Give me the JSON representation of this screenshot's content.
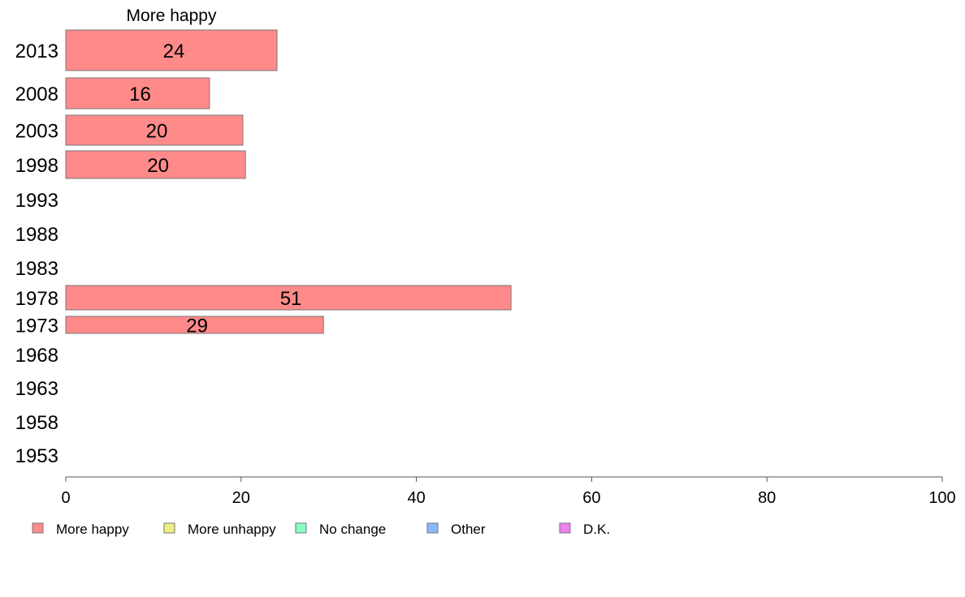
{
  "chart_data": {
    "type": "bar",
    "orientation": "horizontal",
    "title": "More happy",
    "categories": [
      "2013",
      "2008",
      "2003",
      "1998",
      "1993",
      "1988",
      "1983",
      "1978",
      "1973",
      "1968",
      "1963",
      "1958",
      "1953"
    ],
    "series": [
      {
        "name": "More happy",
        "color": "#ff8a8a",
        "values": [
          24.1,
          16.4,
          20.2,
          20.5,
          null,
          null,
          null,
          50.8,
          29.4,
          null,
          null,
          null,
          null
        ],
        "labels": [
          "24",
          "16",
          "20",
          "20",
          "",
          "",
          "",
          "51",
          "29",
          "",
          "",
          "",
          ""
        ]
      }
    ],
    "xlim": [
      0,
      100
    ],
    "xticks": [
      "0",
      "20",
      "40",
      "60",
      "80",
      "100"
    ],
    "grid": false,
    "legend_position": "bottom",
    "legend": [
      {
        "label": "More happy",
        "color": "#ff8a8a"
      },
      {
        "label": "More unhappy",
        "color": "#f0f080"
      },
      {
        "label": "No change",
        "color": "#8affc0"
      },
      {
        "label": "Other",
        "color": "#8ab8ff"
      },
      {
        "label": "D.K.",
        "color": "#f080f0"
      }
    ]
  }
}
